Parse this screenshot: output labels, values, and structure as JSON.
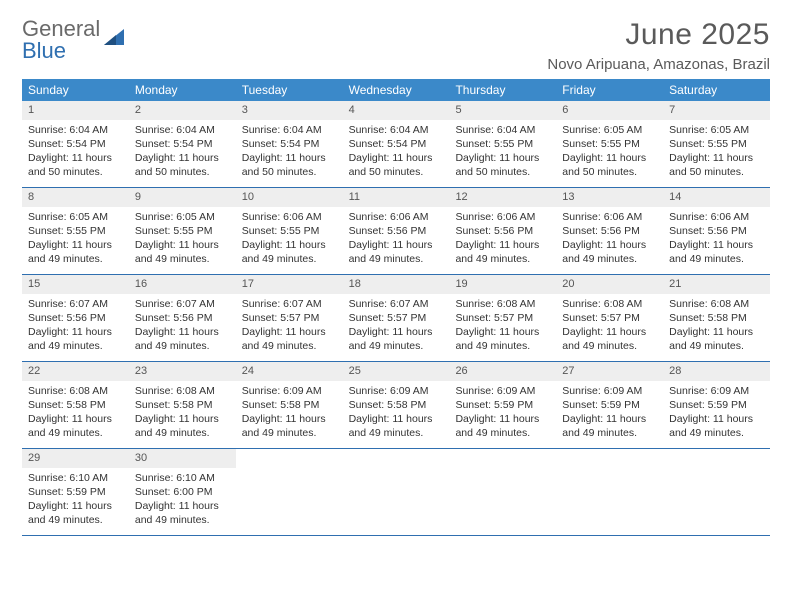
{
  "logo": {
    "part1": "General",
    "part2": "Blue"
  },
  "title": "June 2025",
  "location": "Novo Aripuana, Amazonas, Brazil",
  "colors": {
    "header_bg": "#3b89c9",
    "header_text": "#ffffff",
    "daynum_bg": "#eeeeee",
    "border": "#2f6fb0",
    "body_text": "#333333",
    "title_text": "#5a5a5a",
    "logo_gray": "#6a6a6a",
    "logo_blue": "#2f6fb0"
  },
  "day_labels": [
    "Sunday",
    "Monday",
    "Tuesday",
    "Wednesday",
    "Thursday",
    "Friday",
    "Saturday"
  ],
  "weeks": [
    [
      {
        "n": "1",
        "sunrise": "Sunrise: 6:04 AM",
        "sunset": "Sunset: 5:54 PM",
        "daylight": "Daylight: 11 hours and 50 minutes."
      },
      {
        "n": "2",
        "sunrise": "Sunrise: 6:04 AM",
        "sunset": "Sunset: 5:54 PM",
        "daylight": "Daylight: 11 hours and 50 minutes."
      },
      {
        "n": "3",
        "sunrise": "Sunrise: 6:04 AM",
        "sunset": "Sunset: 5:54 PM",
        "daylight": "Daylight: 11 hours and 50 minutes."
      },
      {
        "n": "4",
        "sunrise": "Sunrise: 6:04 AM",
        "sunset": "Sunset: 5:54 PM",
        "daylight": "Daylight: 11 hours and 50 minutes."
      },
      {
        "n": "5",
        "sunrise": "Sunrise: 6:04 AM",
        "sunset": "Sunset: 5:55 PM",
        "daylight": "Daylight: 11 hours and 50 minutes."
      },
      {
        "n": "6",
        "sunrise": "Sunrise: 6:05 AM",
        "sunset": "Sunset: 5:55 PM",
        "daylight": "Daylight: 11 hours and 50 minutes."
      },
      {
        "n": "7",
        "sunrise": "Sunrise: 6:05 AM",
        "sunset": "Sunset: 5:55 PM",
        "daylight": "Daylight: 11 hours and 50 minutes."
      }
    ],
    [
      {
        "n": "8",
        "sunrise": "Sunrise: 6:05 AM",
        "sunset": "Sunset: 5:55 PM",
        "daylight": "Daylight: 11 hours and 49 minutes."
      },
      {
        "n": "9",
        "sunrise": "Sunrise: 6:05 AM",
        "sunset": "Sunset: 5:55 PM",
        "daylight": "Daylight: 11 hours and 49 minutes."
      },
      {
        "n": "10",
        "sunrise": "Sunrise: 6:06 AM",
        "sunset": "Sunset: 5:55 PM",
        "daylight": "Daylight: 11 hours and 49 minutes."
      },
      {
        "n": "11",
        "sunrise": "Sunrise: 6:06 AM",
        "sunset": "Sunset: 5:56 PM",
        "daylight": "Daylight: 11 hours and 49 minutes."
      },
      {
        "n": "12",
        "sunrise": "Sunrise: 6:06 AM",
        "sunset": "Sunset: 5:56 PM",
        "daylight": "Daylight: 11 hours and 49 minutes."
      },
      {
        "n": "13",
        "sunrise": "Sunrise: 6:06 AM",
        "sunset": "Sunset: 5:56 PM",
        "daylight": "Daylight: 11 hours and 49 minutes."
      },
      {
        "n": "14",
        "sunrise": "Sunrise: 6:06 AM",
        "sunset": "Sunset: 5:56 PM",
        "daylight": "Daylight: 11 hours and 49 minutes."
      }
    ],
    [
      {
        "n": "15",
        "sunrise": "Sunrise: 6:07 AM",
        "sunset": "Sunset: 5:56 PM",
        "daylight": "Daylight: 11 hours and 49 minutes."
      },
      {
        "n": "16",
        "sunrise": "Sunrise: 6:07 AM",
        "sunset": "Sunset: 5:56 PM",
        "daylight": "Daylight: 11 hours and 49 minutes."
      },
      {
        "n": "17",
        "sunrise": "Sunrise: 6:07 AM",
        "sunset": "Sunset: 5:57 PM",
        "daylight": "Daylight: 11 hours and 49 minutes."
      },
      {
        "n": "18",
        "sunrise": "Sunrise: 6:07 AM",
        "sunset": "Sunset: 5:57 PM",
        "daylight": "Daylight: 11 hours and 49 minutes."
      },
      {
        "n": "19",
        "sunrise": "Sunrise: 6:08 AM",
        "sunset": "Sunset: 5:57 PM",
        "daylight": "Daylight: 11 hours and 49 minutes."
      },
      {
        "n": "20",
        "sunrise": "Sunrise: 6:08 AM",
        "sunset": "Sunset: 5:57 PM",
        "daylight": "Daylight: 11 hours and 49 minutes."
      },
      {
        "n": "21",
        "sunrise": "Sunrise: 6:08 AM",
        "sunset": "Sunset: 5:58 PM",
        "daylight": "Daylight: 11 hours and 49 minutes."
      }
    ],
    [
      {
        "n": "22",
        "sunrise": "Sunrise: 6:08 AM",
        "sunset": "Sunset: 5:58 PM",
        "daylight": "Daylight: 11 hours and 49 minutes."
      },
      {
        "n": "23",
        "sunrise": "Sunrise: 6:08 AM",
        "sunset": "Sunset: 5:58 PM",
        "daylight": "Daylight: 11 hours and 49 minutes."
      },
      {
        "n": "24",
        "sunrise": "Sunrise: 6:09 AM",
        "sunset": "Sunset: 5:58 PM",
        "daylight": "Daylight: 11 hours and 49 minutes."
      },
      {
        "n": "25",
        "sunrise": "Sunrise: 6:09 AM",
        "sunset": "Sunset: 5:58 PM",
        "daylight": "Daylight: 11 hours and 49 minutes."
      },
      {
        "n": "26",
        "sunrise": "Sunrise: 6:09 AM",
        "sunset": "Sunset: 5:59 PM",
        "daylight": "Daylight: 11 hours and 49 minutes."
      },
      {
        "n": "27",
        "sunrise": "Sunrise: 6:09 AM",
        "sunset": "Sunset: 5:59 PM",
        "daylight": "Daylight: 11 hours and 49 minutes."
      },
      {
        "n": "28",
        "sunrise": "Sunrise: 6:09 AM",
        "sunset": "Sunset: 5:59 PM",
        "daylight": "Daylight: 11 hours and 49 minutes."
      }
    ],
    [
      {
        "n": "29",
        "sunrise": "Sunrise: 6:10 AM",
        "sunset": "Sunset: 5:59 PM",
        "daylight": "Daylight: 11 hours and 49 minutes."
      },
      {
        "n": "30",
        "sunrise": "Sunrise: 6:10 AM",
        "sunset": "Sunset: 6:00 PM",
        "daylight": "Daylight: 11 hours and 49 minutes."
      },
      null,
      null,
      null,
      null,
      null
    ]
  ]
}
